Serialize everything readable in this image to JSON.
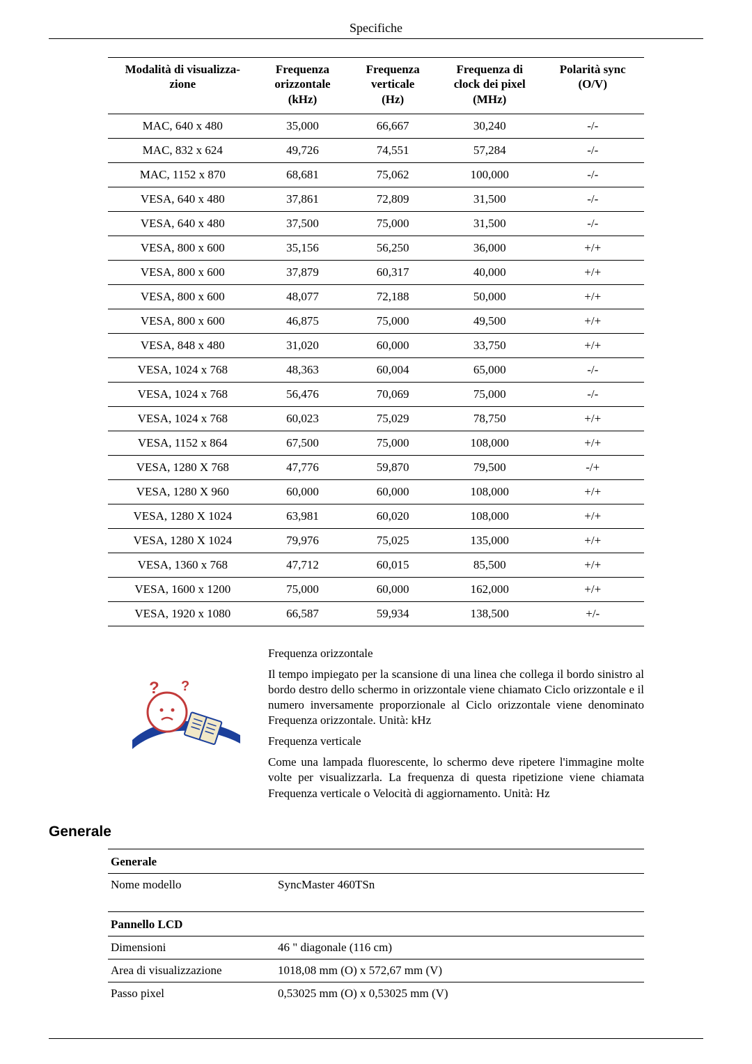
{
  "header": {
    "title": "Specifiche"
  },
  "timing_table": {
    "columns": [
      "Modalità di visualizza-\nzione",
      "Frequenza orizzontale (kHz)",
      "Frequenza verticale (Hz)",
      "Frequenza di clock dei pixel (MHz)",
      "Polarità sync (O/V)"
    ],
    "rows": [
      [
        "MAC, 640 x 480",
        "35,000",
        "66,667",
        "30,240",
        "-/-"
      ],
      [
        "MAC, 832 x 624",
        "49,726",
        "74,551",
        "57,284",
        "-/-"
      ],
      [
        "MAC, 1152 x 870",
        "68,681",
        "75,062",
        "100,000",
        "-/-"
      ],
      [
        "VESA, 640 x 480",
        "37,861",
        "72,809",
        "31,500",
        "-/-"
      ],
      [
        "VESA, 640 x 480",
        "37,500",
        "75,000",
        "31,500",
        "-/-"
      ],
      [
        "VESA, 800 x 600",
        "35,156",
        "56,250",
        "36,000",
        "+/+"
      ],
      [
        "VESA, 800 x 600",
        "37,879",
        "60,317",
        "40,000",
        "+/+"
      ],
      [
        "VESA, 800 x 600",
        "48,077",
        "72,188",
        "50,000",
        "+/+"
      ],
      [
        "VESA, 800 x 600",
        "46,875",
        "75,000",
        "49,500",
        "+/+"
      ],
      [
        "VESA, 848 x 480",
        "31,020",
        "60,000",
        "33,750",
        "+/+"
      ],
      [
        "VESA, 1024 x 768",
        "48,363",
        "60,004",
        "65,000",
        "-/-"
      ],
      [
        "VESA, 1024 x 768",
        "56,476",
        "70,069",
        "75,000",
        "-/-"
      ],
      [
        "VESA, 1024 x 768",
        "60,023",
        "75,029",
        "78,750",
        "+/+"
      ],
      [
        "VESA, 1152 x 864",
        "67,500",
        "75,000",
        "108,000",
        "+/+"
      ],
      [
        "VESA, 1280 X 768",
        "47,776",
        "59,870",
        "79,500",
        "-/+"
      ],
      [
        "VESA, 1280 X 960",
        "60,000",
        "60,000",
        "108,000",
        "+/+"
      ],
      [
        "VESA, 1280 X 1024",
        "63,981",
        "60,020",
        "108,000",
        "+/+"
      ],
      [
        "VESA, 1280 X 1024",
        "79,976",
        "75,025",
        "135,000",
        "+/+"
      ],
      [
        "VESA, 1360 x 768",
        "47,712",
        "60,015",
        "85,500",
        "+/+"
      ],
      [
        "VESA, 1600 x 1200",
        "75,000",
        "60,000",
        "162,000",
        "+/+"
      ],
      [
        "VESA, 1920 x 1080",
        "66,587",
        "59,934",
        "138,500",
        "+/-"
      ]
    ]
  },
  "explain": {
    "h1": "Frequenza orizzontale",
    "p1": "Il tempo impiegato per la scansione di una linea che collega il bordo sinistro al bordo destro dello schermo in orizzontale viene chiamato Ciclo orizzontale e il numero inversamente proporzionale al Ciclo orizzontale viene denominato Frequenza orizzontale. Unità: kHz",
    "h2": "Frequenza verticale",
    "p2": "Come una lampada fluorescente, lo schermo deve ripetere l'immagine molte volte per visualizzarla. La frequenza di questa ripetizione viene chiamata Frequenza verticale o Velocità di aggiornamento. Unità: Hz"
  },
  "section": {
    "generale": "Generale"
  },
  "spec": {
    "group1": "Generale",
    "row1_label": "Nome modello",
    "row1_value": "SyncMaster 460TSn",
    "group2": "Pannello LCD",
    "row2_label": "Dimensioni",
    "row2_value": "46 \" diagonale (116 cm)",
    "row3_label": "Area di visualizzazione",
    "row3_value": "1018,08 mm (O) x 572,67 mm (V)",
    "row4_label": "Passo pixel",
    "row4_value": "0,53025 mm (O) x 0,53025 mm (V)"
  },
  "icon": {
    "face_fill": "#ffffff",
    "face_stroke": "#c23a3a",
    "question_color": "#c23a3a",
    "swoosh_color": "#1b3f9b",
    "book_fill": "#f1e8c7",
    "book_stroke": "#1b3f9b"
  }
}
